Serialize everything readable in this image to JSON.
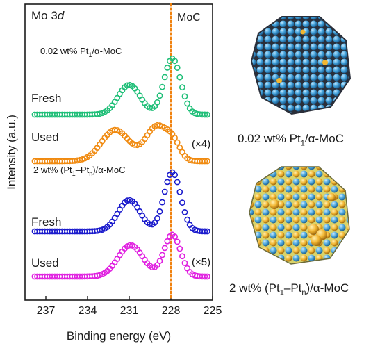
{
  "chart_data": {
    "type": "scatter",
    "panel_label": "Mo 3",
    "panel_label_italic": "d",
    "xlabel": "Binding energy (eV)",
    "ylabel": "Intensity (a.u.)",
    "xlim": [
      238.5,
      225
    ],
    "x_reversed": true,
    "x_ticks": [
      237,
      234,
      231,
      228,
      225
    ],
    "reference_line": {
      "x": 228.0,
      "label": "MoC",
      "color": "#f0820f",
      "style": "dotted"
    },
    "groups": [
      {
        "title": "0.02 wt% Pt1/α-MoC",
        "title_main": "0.02 wt% Pt",
        "title_sub": "1",
        "title_tail": "/α-MoC"
      },
      {
        "title": "2 wt% (Pt1–Ptn)/α-MoC",
        "title_main": "2 wt% (Pt",
        "title_sub": "1",
        "title_mid": "–Pt",
        "title_sub2": "n",
        "title_tail": ")/α-MoC"
      }
    ],
    "series": [
      {
        "name": "Fresh",
        "group": 0,
        "color": "#1fbf78",
        "baseline": 0,
        "peaks": [
          [
            231.0,
            0.45,
            0.8
          ],
          [
            227.9,
            0.85,
            0.6
          ]
        ]
      },
      {
        "name": "Used",
        "group": 0,
        "color": "#f08a10",
        "baseline": 0,
        "scale_note": "(×4)",
        "peaks": [
          [
            232.0,
            0.45,
            1.0
          ],
          [
            229.0,
            0.5,
            0.8
          ],
          [
            227.8,
            0.2,
            0.5
          ]
        ]
      },
      {
        "name": "Fresh",
        "group": 1,
        "color": "#1a1acc",
        "baseline": 0,
        "peaks": [
          [
            231.0,
            0.45,
            0.8
          ],
          [
            227.9,
            0.85,
            0.6
          ]
        ]
      },
      {
        "name": "Used",
        "group": 1,
        "color": "#e020e0",
        "baseline": 0,
        "scale_note": "(×5)",
        "peaks": [
          [
            230.9,
            0.45,
            0.9
          ],
          [
            227.9,
            0.6,
            0.6
          ]
        ]
      }
    ]
  },
  "models": [
    {
      "caption_main": "0.02 wt% Pt",
      "caption_sub": "1",
      "caption_tail": "/α-MoC"
    },
    {
      "caption_main": "2 wt% (Pt",
      "caption_sub": "1",
      "caption_mid": "–Pt",
      "caption_sub2": "n",
      "caption_tail": ")/α-MoC"
    }
  ]
}
